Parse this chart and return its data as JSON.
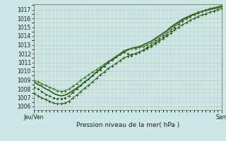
{
  "title": "Pression niveau de la mer( hPa )",
  "xlabel_left": "Jeu/Ven",
  "xlabel_right": "Sam",
  "ylabel_values": [
    1006,
    1007,
    1008,
    1009,
    1010,
    1011,
    1012,
    1013,
    1014,
    1015,
    1016,
    1017
  ],
  "ylim": [
    1005.6,
    1017.6
  ],
  "xlim": [
    0,
    48
  ],
  "bg_color": "#cce8e4",
  "grid_color_major": "#aaccc8",
  "grid_color_minor": "#bbddd9",
  "line_dark": "#2d5a1e",
  "line_med": "#3d7a2e",
  "x_tick_left": 0,
  "x_tick_right": 48,
  "series_x": [
    0,
    1,
    2,
    3,
    4,
    5,
    6,
    7,
    8,
    9,
    10,
    11,
    12,
    13,
    14,
    15,
    16,
    17,
    18,
    19,
    20,
    21,
    22,
    23,
    24,
    25,
    26,
    27,
    28,
    29,
    30,
    31,
    32,
    33,
    34,
    35,
    36,
    37,
    38,
    39,
    40,
    41,
    42,
    43,
    44,
    45,
    46,
    47,
    48
  ],
  "line1_y": [
    1008.8,
    1008.5,
    1008.3,
    1008.0,
    1007.8,
    1007.5,
    1007.3,
    1007.2,
    1007.3,
    1007.5,
    1007.8,
    1008.1,
    1008.4,
    1008.8,
    1009.1,
    1009.5,
    1009.9,
    1010.3,
    1010.6,
    1011.0,
    1011.3,
    1011.6,
    1011.9,
    1012.2,
    1012.4,
    1012.6,
    1012.7,
    1012.8,
    1013.0,
    1013.2,
    1013.4,
    1013.7,
    1014.0,
    1014.3,
    1014.6,
    1015.0,
    1015.3,
    1015.6,
    1015.9,
    1016.1,
    1016.3,
    1016.5,
    1016.6,
    1016.8,
    1016.9,
    1017.0,
    1017.1,
    1017.2,
    1017.3
  ],
  "line2_y": [
    1007.5,
    1007.2,
    1007.0,
    1006.8,
    1006.6,
    1006.4,
    1006.3,
    1006.3,
    1006.4,
    1006.6,
    1007.0,
    1007.3,
    1007.7,
    1008.1,
    1008.4,
    1008.8,
    1009.2,
    1009.6,
    1009.9,
    1010.3,
    1010.6,
    1010.9,
    1011.2,
    1011.5,
    1011.7,
    1011.9,
    1012.0,
    1012.2,
    1012.4,
    1012.6,
    1012.8,
    1013.1,
    1013.4,
    1013.7,
    1014.0,
    1014.3,
    1014.7,
    1015.0,
    1015.3,
    1015.5,
    1015.8,
    1016.0,
    1016.2,
    1016.4,
    1016.5,
    1016.7,
    1016.8,
    1017.0,
    1017.1
  ],
  "line3_y": [
    1009.0,
    1008.8,
    1008.6,
    1008.4,
    1008.2,
    1008.0,
    1007.8,
    1007.7,
    1007.8,
    1008.0,
    1008.3,
    1008.6,
    1009.0,
    1009.3,
    1009.6,
    1009.9,
    1010.2,
    1010.5,
    1010.8,
    1011.1,
    1011.4,
    1011.7,
    1012.0,
    1012.3,
    1012.5,
    1012.6,
    1012.6,
    1012.7,
    1012.8,
    1013.0,
    1013.2,
    1013.5,
    1013.8,
    1014.1,
    1014.4,
    1014.8,
    1015.2,
    1015.5,
    1015.8,
    1016.0,
    1016.2,
    1016.4,
    1016.6,
    1016.8,
    1016.9,
    1017.1,
    1017.2,
    1017.3,
    1017.5
  ],
  "line4_y": [
    1008.2,
    1008.0,
    1007.7,
    1007.4,
    1007.2,
    1007.0,
    1006.9,
    1006.9,
    1007.0,
    1007.2,
    1007.6,
    1008.0,
    1008.4,
    1008.8,
    1009.1,
    1009.5,
    1009.9,
    1010.2,
    1010.6,
    1011.0,
    1011.3,
    1011.6,
    1011.9,
    1012.2,
    1012.0,
    1011.8,
    1012.0,
    1012.2,
    1012.4,
    1012.7,
    1013.0,
    1013.3,
    1013.6,
    1013.9,
    1014.2,
    1014.6,
    1015.0,
    1015.4,
    1015.7,
    1016.0,
    1016.3,
    1016.5,
    1016.7,
    1016.8,
    1017.0,
    1017.1,
    1017.2,
    1017.3,
    1017.4
  ]
}
